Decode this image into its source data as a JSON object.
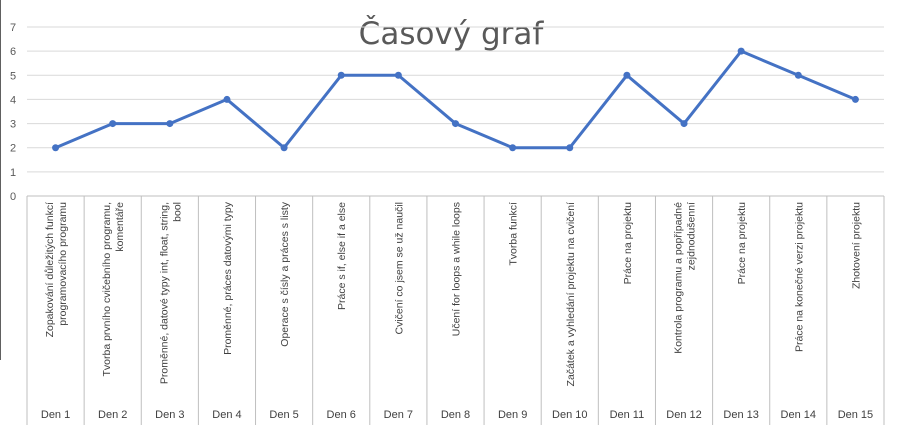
{
  "colors": {
    "line": "#4472c4",
    "gridline": "#d9d9d9",
    "axis": "#bfbfbf",
    "title": "#595959",
    "text": "#404040"
  },
  "chart_data": {
    "type": "line",
    "title": "Časový graf",
    "xlabel": "",
    "ylabel": "",
    "ylim": [
      0,
      7
    ],
    "yticks": [
      0,
      1,
      2,
      3,
      4,
      5,
      6,
      7
    ],
    "grid": true,
    "legend": "none",
    "categories": [
      {
        "day": "Den 1",
        "lines": [
          "Zopakování důležitých funkcí",
          "programovacího programu"
        ]
      },
      {
        "day": "Den 2",
        "lines": [
          "Tvorba prvního cvičebního programu,",
          "komentáře"
        ]
      },
      {
        "day": "Den 3",
        "lines": [
          "Proměnné, datové typy int, float, string,",
          "bool"
        ]
      },
      {
        "day": "Den 4",
        "lines": [
          "Proměnné, práces datovými typy"
        ]
      },
      {
        "day": "Den 5",
        "lines": [
          "Operace s čísly a práces s listy"
        ]
      },
      {
        "day": "Den 6",
        "lines": [
          "Práce s if, else if a else"
        ]
      },
      {
        "day": "Den 7",
        "lines": [
          "Cvičení co jsem se už naučil"
        ]
      },
      {
        "day": "Den 8",
        "lines": [
          "Učení for loops a while loops"
        ]
      },
      {
        "day": "Den 9",
        "lines": [
          "Tvorba funkcí"
        ]
      },
      {
        "day": "Den 10",
        "lines": [
          "Začátek a vyhledání projektu na cvičení"
        ]
      },
      {
        "day": "Den 11",
        "lines": [
          "Práce na projektu"
        ]
      },
      {
        "day": "Den 12",
        "lines": [
          "Kontrola programu a popřípadné",
          "zejdnodušenní"
        ]
      },
      {
        "day": "Den 13",
        "lines": [
          "Práce na projektu"
        ]
      },
      {
        "day": "Den 14",
        "lines": [
          "Práce na konečné verzi projektu"
        ]
      },
      {
        "day": "Den 15",
        "lines": [
          "Zhotovení projektu"
        ]
      }
    ],
    "series": [
      {
        "values": [
          2,
          3,
          3,
          4,
          2,
          5,
          5,
          3,
          2,
          2,
          5,
          3,
          6,
          5,
          4
        ]
      }
    ]
  }
}
